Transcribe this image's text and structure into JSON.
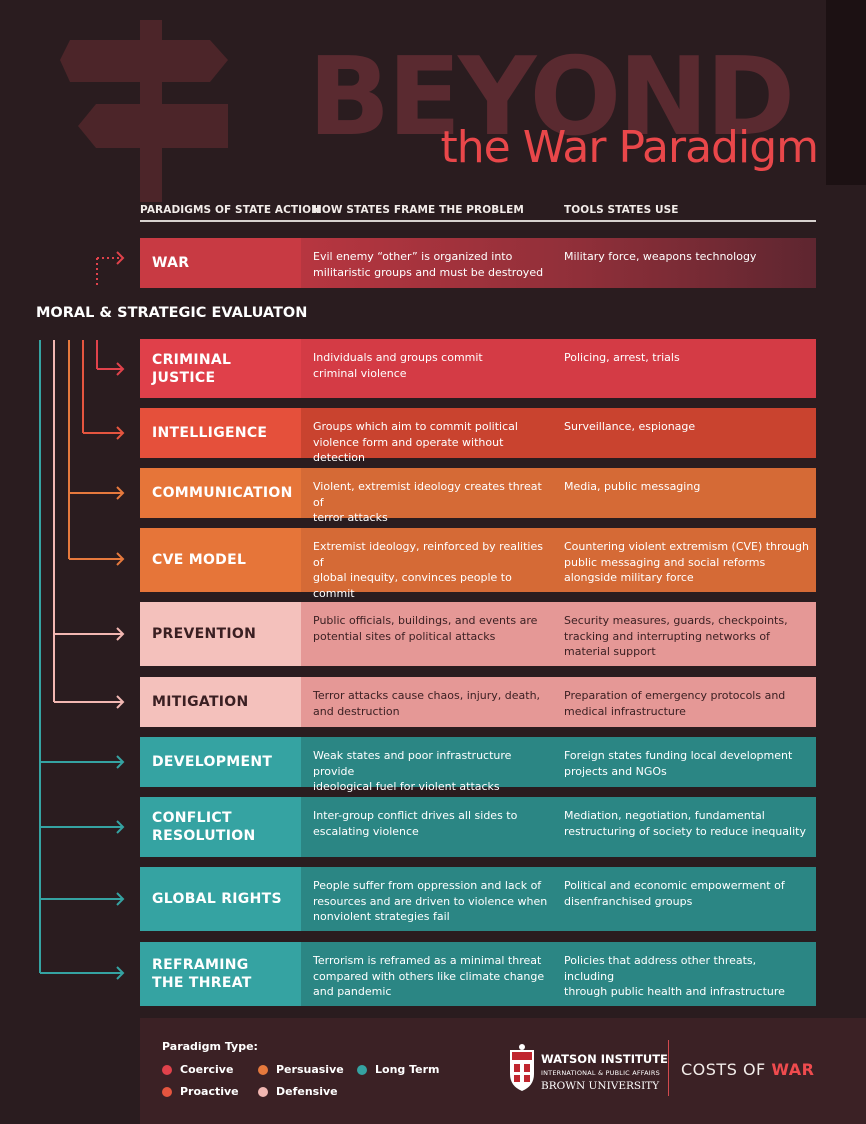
{
  "title": {
    "beyond": "BEYOND",
    "subtitle": "the War Paradigm"
  },
  "columns": {
    "paradigm": "PARADIGMS OF STATE ACTION",
    "frame": "HOW STATES FRAME THE PROBLEM",
    "tools": "TOOLS STATES USE"
  },
  "war_row": {
    "name": "WAR",
    "frame": "Evil enemy “other” is organized into\nmilitaristic groups and must be destroyed",
    "tools": "Military force, weapons technology"
  },
  "evaluation_title": "MORAL & STRATEGIC EVALUATON",
  "rows": [
    {
      "name": "CRIMINAL\nJUSTICE",
      "frame": "Individuals and groups commit\ncriminal violence",
      "tools": "Policing, arrest, trials",
      "type": "Coercive"
    },
    {
      "name": "INTELLIGENCE",
      "frame": "Groups which aim to commit political\nviolence form and operate without detection",
      "tools": "Surveillance, espionage",
      "type": "Proactive"
    },
    {
      "name": "COMMUNICATION",
      "frame": "Violent, extremist ideology creates threat of\nterror attacks",
      "tools": "Media, public messaging",
      "type": "Persuasive"
    },
    {
      "name": "CVE MODEL",
      "frame": "Extremist ideology, reinforced by realities of\nglobal inequity, convinces people to commit\nacts of violence",
      "tools": "Countering violent extremism (CVE) through\npublic messaging and social reforms\nalongside military force",
      "type": "Persuasive"
    },
    {
      "name": "PREVENTION",
      "frame": "Public officials, buildings, and events are\npotential sites of political attacks",
      "tools": "Security measures, guards, checkpoints,\ntracking and interrupting networks of\nmaterial support",
      "type": "Defensive"
    },
    {
      "name": "MITIGATION",
      "frame": "Terror attacks cause chaos, injury, death,\nand destruction",
      "tools": "Preparation of emergency protocols and\nmedical infrastructure",
      "type": "Defensive"
    },
    {
      "name": "DEVELOPMENT",
      "frame": "Weak states and poor infrastructure provide\nideological fuel for violent attacks",
      "tools": "Foreign states funding local development\nprojects and NGOs",
      "type": "Long Term"
    },
    {
      "name": "CONFLICT\nRESOLUTION",
      "frame": "Inter-group conflict drives all sides to\nescalating violence",
      "tools": "Mediation, negotiation, fundamental\nrestructuring of society to reduce inequality",
      "type": "Long Term"
    },
    {
      "name": "GLOBAL RIGHTS",
      "frame": "People suffer from oppression and lack of\nresources and are driven to violence when\nnonviolent strategies fail",
      "tools": "Political and economic empowerment of\ndisenfranchised groups",
      "type": "Long Term"
    },
    {
      "name": "REFRAMING\nTHE THREAT",
      "frame": "Terrorism is reframed as a minimal threat\ncompared with others like climate change\nand pandemic",
      "tools": "Policies that address other threats, including\nthrough public health and infrastructure",
      "type": "Long Term"
    }
  ],
  "legend": {
    "title": "Paradigm Type:",
    "items": [
      {
        "label": "Coercive",
        "color": "#e0424b"
      },
      {
        "label": "Persuasive",
        "color": "#e6793d"
      },
      {
        "label": "Long Term",
        "color": "#35a3a2"
      },
      {
        "label": "Proactive",
        "color": "#e5553f"
      },
      {
        "label": "Defensive",
        "color": "#f2b7b2"
      }
    ]
  },
  "colors": {
    "coercive": "#d43b45",
    "proactive": "#e24f38",
    "persuasive": "#e26f38",
    "defensive": "#e79a98",
    "long_term": "#2b8d8b",
    "war_accent": "#c83a43"
  },
  "footer": {
    "institute": "WATSON INSTITUTE",
    "institute_sub": "INTERNATIONAL & PUBLIC AFFAIRS",
    "university": "BROWN UNIVERSITY",
    "brand_plain": "COSTS OF ",
    "brand_accent": "WAR"
  },
  "icons": [
    "signpost-icon",
    "arrow-right-icon",
    "shield-icon"
  ]
}
